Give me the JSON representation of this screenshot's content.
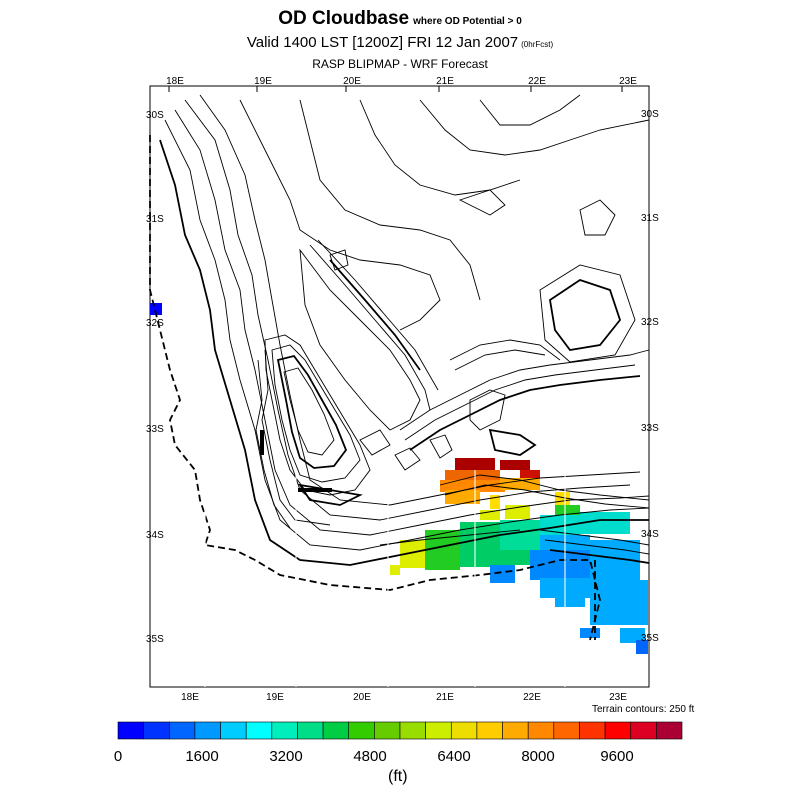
{
  "header": {
    "title": "OD Cloudbase",
    "title_note": "where OD Potential > 0",
    "valid": "Valid 1400 LST [1200Z] FRI 12 Jan 2007",
    "valid_note": "(0hrFcst)",
    "subtitle": "RASP BLIPMAP - WRF Forecast"
  },
  "map": {
    "lon_labels": [
      "18E",
      "19E",
      "20E",
      "21E",
      "22E",
      "23E"
    ],
    "lat_labels": [
      "30S",
      "31S",
      "32S",
      "33S",
      "34S",
      "35S"
    ],
    "terrain_note": "Terrain contours: 250 ft"
  },
  "legend": {
    "tick_labels": [
      "0",
      "1600",
      "3200",
      "4800",
      "6400",
      "8000",
      "9600"
    ],
    "unit": "(ft)",
    "colors": [
      "#0000ff",
      "#0033ff",
      "#0066ff",
      "#0099ff",
      "#00ccff",
      "#00ffff",
      "#00eebb",
      "#00dd88",
      "#00cc44",
      "#33cc00",
      "#66cc00",
      "#99dd00",
      "#ccee00",
      "#eedd00",
      "#ffcc00",
      "#ffaa00",
      "#ff8800",
      "#ff6600",
      "#ff3300",
      "#ff0000",
      "#dd0022",
      "#aa0033"
    ]
  },
  "field": {
    "red": [
      "#aa0000",
      "#cc1100"
    ],
    "orange": [
      "#ee6600",
      "#ff8800",
      "#ffaa00"
    ],
    "yellow": [
      "#ffdd00",
      "#ddee00"
    ],
    "green": [
      "#22cc22",
      "#00cc66",
      "#00dd99",
      "#00ddcc"
    ],
    "blue": [
      "#00aaff",
      "#0088ff",
      "#0066ff",
      "#0000ff"
    ]
  }
}
